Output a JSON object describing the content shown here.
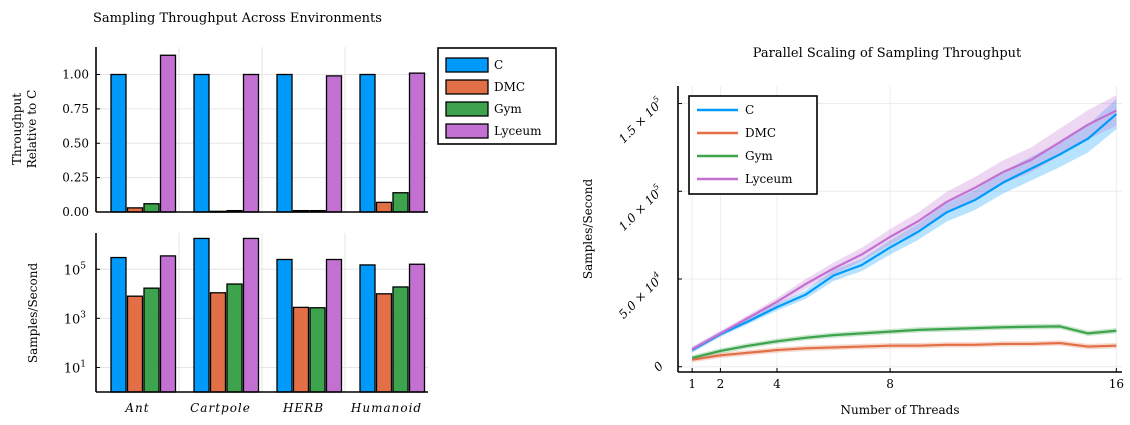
{
  "colors": {
    "C": "#009AFA",
    "DMC": "#E26F46",
    "Gym": "#3DA44D",
    "Lyceum": "#C271D2"
  },
  "left": {
    "title": "Sampling Throughput Across Environments",
    "legend": [
      "C",
      "DMC",
      "Gym",
      "Lyceum"
    ],
    "categories": [
      "Ant",
      "Cartpole",
      "HERB",
      "Humanoid"
    ]
  },
  "right": {
    "title": "Parallel Scaling of Sampling Throughput",
    "legend": [
      "C",
      "DMC",
      "Gym",
      "Lyceum"
    ]
  },
  "chart_data": [
    {
      "type": "bar",
      "title": "Sampling Throughput Across Environments",
      "ylabel": "Throughput Relative to C",
      "categories": [
        "Ant",
        "Cartpole",
        "HERB",
        "Humanoid"
      ],
      "ylim": [
        0,
        1.2
      ],
      "yticks": [
        "0.00",
        "0.25",
        "0.50",
        "0.75",
        "1.00"
      ],
      "series": [
        {
          "name": "C",
          "values": [
            1.0,
            1.0,
            1.0,
            1.0
          ]
        },
        {
          "name": "DMC",
          "values": [
            0.03,
            0.005,
            0.01,
            0.07
          ]
        },
        {
          "name": "Gym",
          "values": [
            0.06,
            0.01,
            0.01,
            0.14
          ]
        },
        {
          "name": "Lyceum",
          "values": [
            1.14,
            1.0,
            0.99,
            1.01
          ]
        }
      ],
      "legend_position": "right"
    },
    {
      "type": "bar",
      "ylabel": "Samples/Second",
      "yscale": "log",
      "categories": [
        "Ant",
        "Cartpole",
        "HERB",
        "Humanoid"
      ],
      "ylim": [
        1,
        3000000
      ],
      "yticks": [
        "10^1",
        "10^3",
        "10^5"
      ],
      "series": [
        {
          "name": "C",
          "values": [
            300000,
            1800000,
            250000,
            150000
          ]
        },
        {
          "name": "DMC",
          "values": [
            8000,
            11000,
            2800,
            10000
          ]
        },
        {
          "name": "Gym",
          "values": [
            17000,
            25000,
            2700,
            19000
          ]
        },
        {
          "name": "Lyceum",
          "values": [
            350000,
            1800000,
            250000,
            160000
          ]
        }
      ]
    },
    {
      "type": "line",
      "title": "Parallel Scaling of Sampling Throughput",
      "xlabel": "Number of Threads",
      "ylabel": "Samples/Second",
      "xlim": [
        0.5,
        16.2
      ],
      "ylim": [
        -3000,
        160000
      ],
      "xticks": [
        "1",
        "2",
        "4",
        "8",
        "16"
      ],
      "yticks": [
        "0",
        "5.0 × 10^4",
        "1.0 × 10^5",
        "1.5 × 10^5"
      ],
      "x": [
        1,
        2,
        3,
        4,
        5,
        6,
        7,
        8,
        9,
        10,
        11,
        12,
        13,
        14,
        15,
        16
      ],
      "series": [
        {
          "name": "C",
          "values": [
            9500,
            18500,
            26000,
            34000,
            41000,
            52000,
            58000,
            68000,
            77000,
            88000,
            95000,
            105000,
            113000,
            121000,
            130000,
            144000
          ]
        },
        {
          "name": "DMC",
          "values": [
            4000,
            6500,
            8000,
            9500,
            10500,
            11000,
            11500,
            12000,
            12000,
            12500,
            12500,
            13000,
            13000,
            13500,
            11500,
            12000
          ]
        },
        {
          "name": "Gym",
          "values": [
            5000,
            9000,
            12000,
            14500,
            16500,
            18000,
            19000,
            20000,
            21000,
            21500,
            22000,
            22500,
            22800,
            23000,
            19000,
            20500
          ]
        },
        {
          "name": "Lyceum",
          "values": [
            10000,
            19000,
            28000,
            37000,
            47000,
            56000,
            64000,
            74000,
            83000,
            94000,
            102000,
            111000,
            118000,
            128000,
            138000,
            146000
          ]
        }
      ],
      "legend_position": "top-left",
      "grid": true
    }
  ]
}
